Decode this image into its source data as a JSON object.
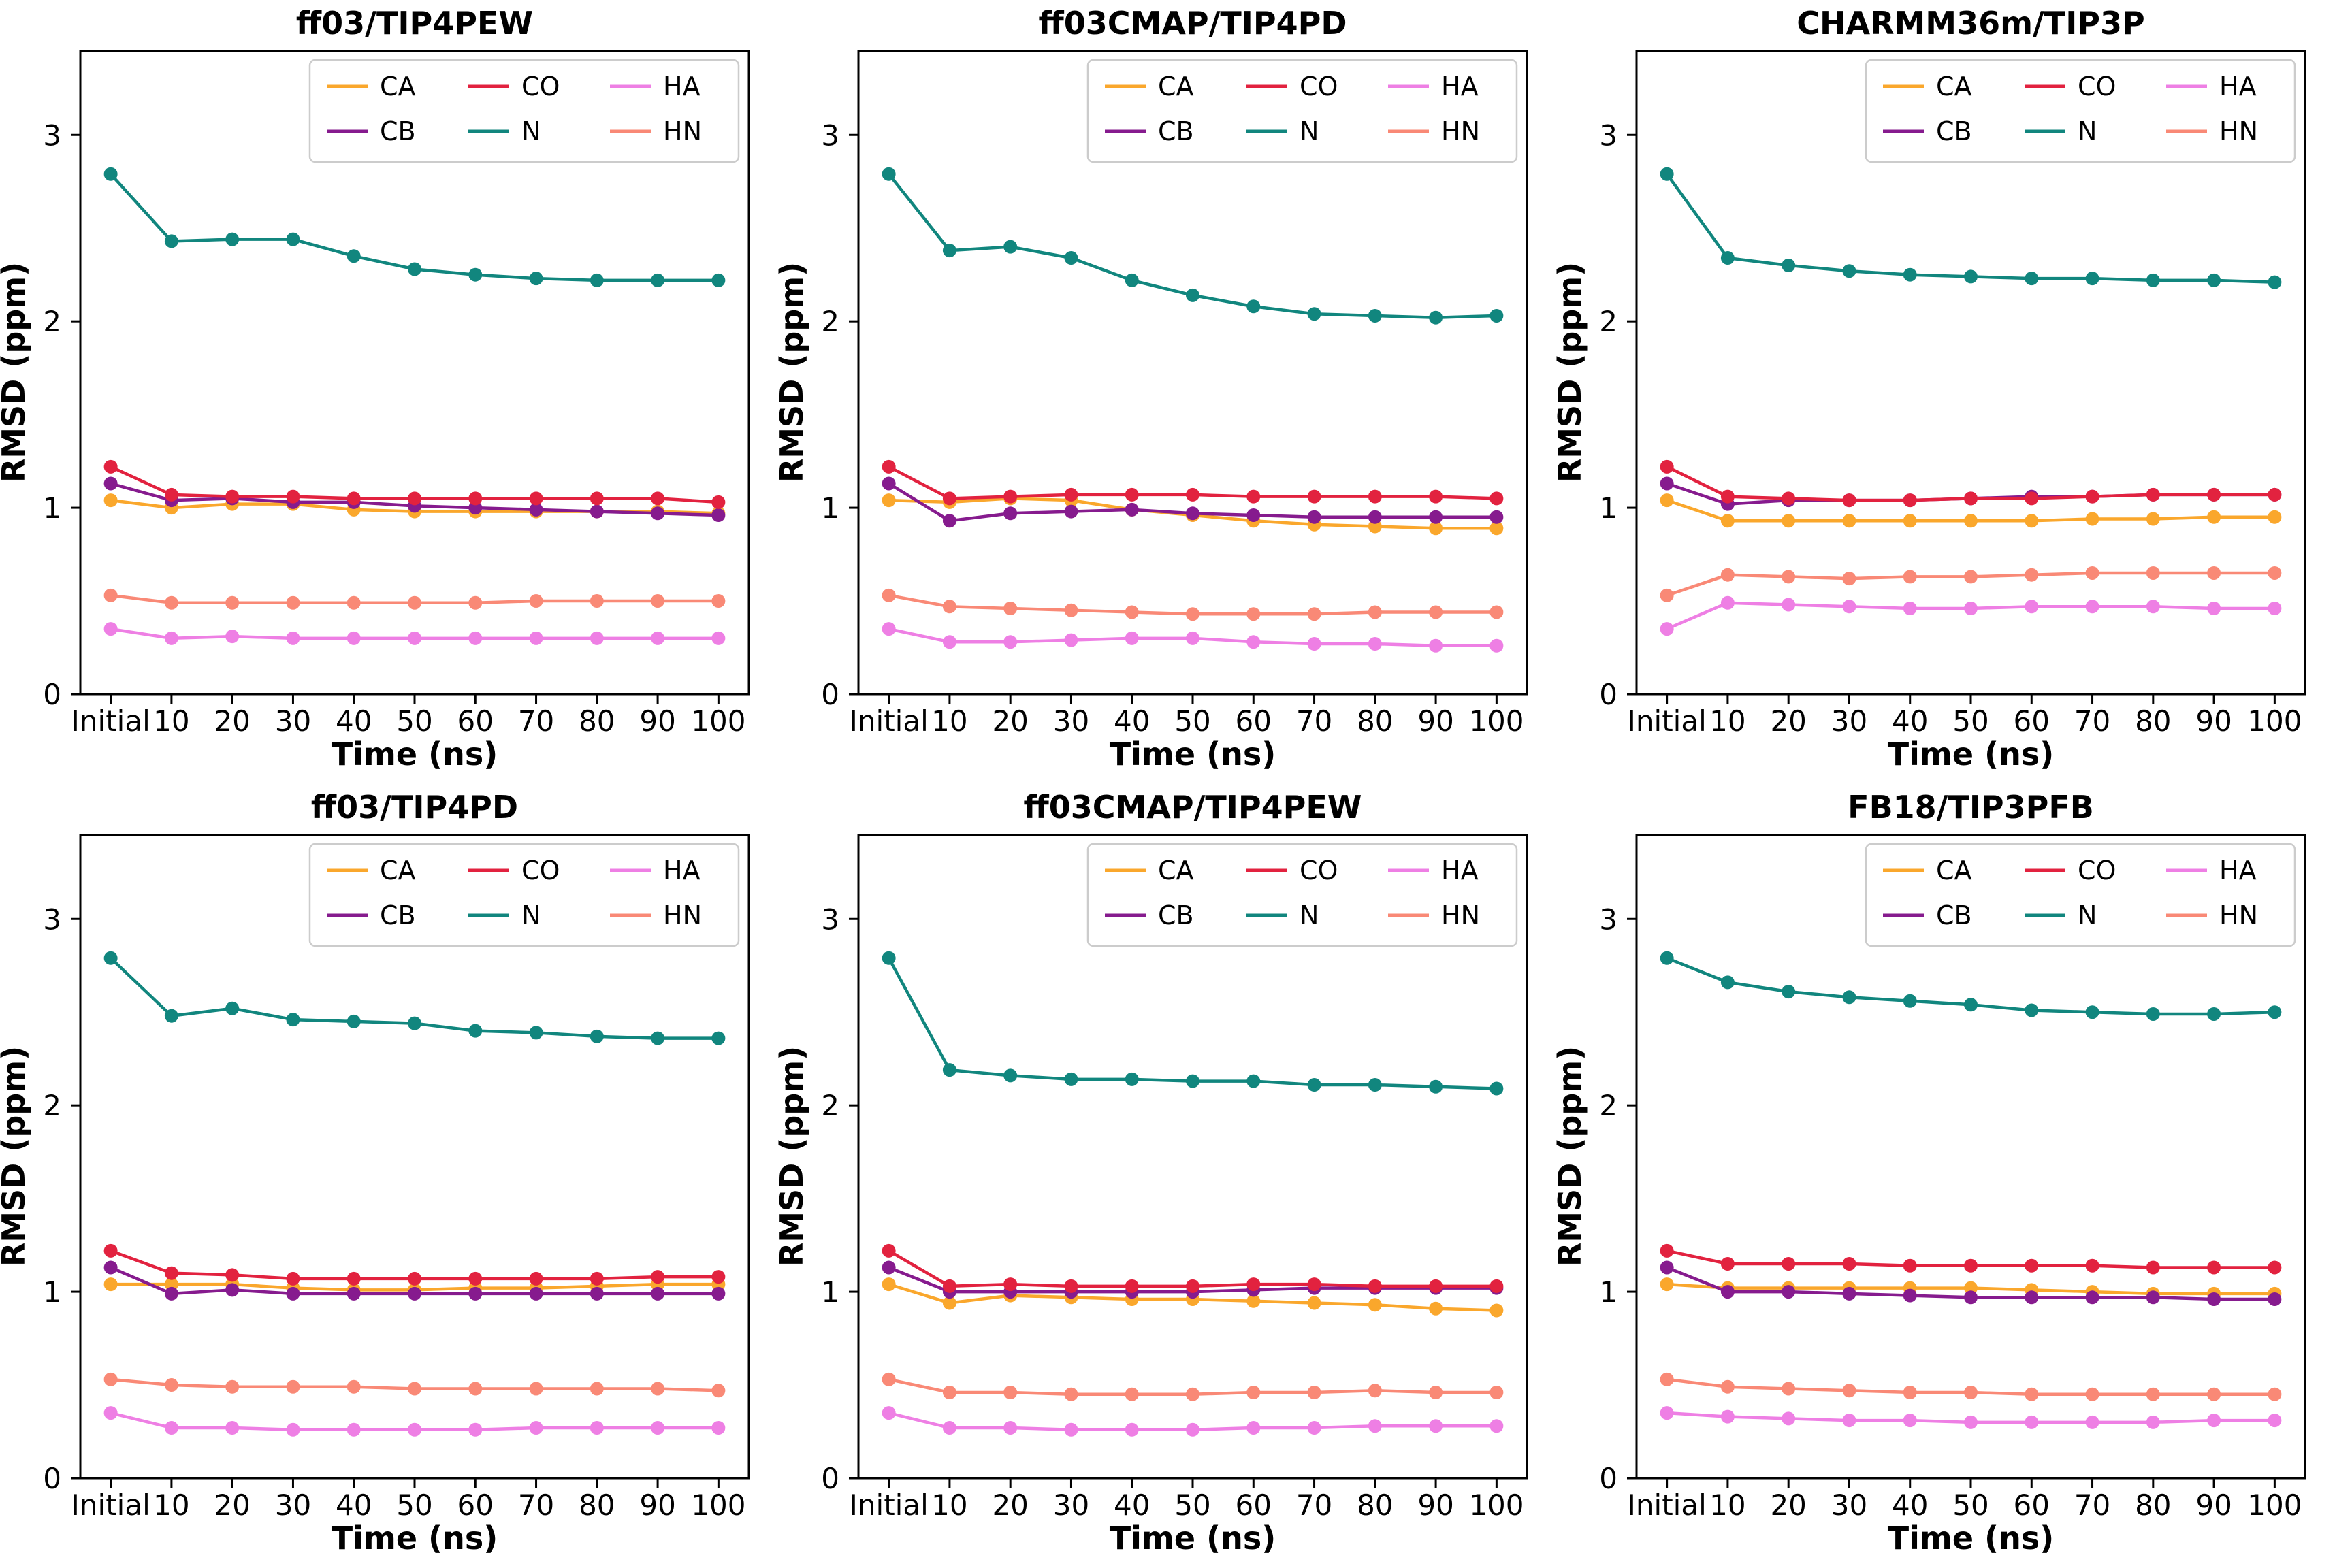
{
  "figure": {
    "background": "#ffffff",
    "layout": "2x3-grid",
    "shared_xlabel": "Time (ns)",
    "shared_ylabel": "RMSD (ppm)"
  },
  "chart_data": [
    {
      "type": "line",
      "title": "ff03/TIP4PEW",
      "xlabel": "Time (ns)",
      "ylabel": "RMSD (ppm)",
      "categories": [
        "Initial",
        "10",
        "20",
        "30",
        "40",
        "50",
        "60",
        "70",
        "80",
        "90",
        "100"
      ],
      "yticks": [
        0,
        1,
        2,
        3
      ],
      "ylim": [
        0,
        3.45
      ],
      "legend_position": "upper-right",
      "series": [
        {
          "name": "CA",
          "color": "#FAA72C",
          "values": [
            1.04,
            1.0,
            1.02,
            1.02,
            0.99,
            0.98,
            0.98,
            0.98,
            0.98,
            0.98,
            0.97
          ]
        },
        {
          "name": "CB",
          "color": "#861B8E",
          "values": [
            1.13,
            1.04,
            1.05,
            1.03,
            1.03,
            1.01,
            1.0,
            0.99,
            0.98,
            0.97,
            0.96
          ]
        },
        {
          "name": "CO",
          "color": "#E2223F",
          "values": [
            1.22,
            1.07,
            1.06,
            1.06,
            1.05,
            1.05,
            1.05,
            1.05,
            1.05,
            1.05,
            1.03
          ]
        },
        {
          "name": "N",
          "color": "#11867E",
          "values": [
            2.79,
            2.43,
            2.44,
            2.44,
            2.35,
            2.28,
            2.25,
            2.23,
            2.22,
            2.22,
            2.22
          ]
        },
        {
          "name": "HA",
          "color": "#EE7FE4",
          "values": [
            0.35,
            0.3,
            0.31,
            0.3,
            0.3,
            0.3,
            0.3,
            0.3,
            0.3,
            0.3,
            0.3
          ]
        },
        {
          "name": "HN",
          "color": "#F98976",
          "values": [
            0.53,
            0.49,
            0.49,
            0.49,
            0.49,
            0.49,
            0.49,
            0.5,
            0.5,
            0.5,
            0.5
          ]
        }
      ]
    },
    {
      "type": "line",
      "title": "ff03CMAP/TIP4PD",
      "xlabel": "Time (ns)",
      "ylabel": "RMSD (ppm)",
      "categories": [
        "Initial",
        "10",
        "20",
        "30",
        "40",
        "50",
        "60",
        "70",
        "80",
        "90",
        "100"
      ],
      "yticks": [
        0,
        1,
        2,
        3
      ],
      "ylim": [
        0,
        3.45
      ],
      "legend_position": "upper-right",
      "series": [
        {
          "name": "CA",
          "color": "#FAA72C",
          "values": [
            1.04,
            1.03,
            1.05,
            1.04,
            0.99,
            0.96,
            0.93,
            0.91,
            0.9,
            0.89,
            0.89
          ]
        },
        {
          "name": "CB",
          "color": "#861B8E",
          "values": [
            1.13,
            0.93,
            0.97,
            0.98,
            0.99,
            0.97,
            0.96,
            0.95,
            0.95,
            0.95,
            0.95
          ]
        },
        {
          "name": "CO",
          "color": "#E2223F",
          "values": [
            1.22,
            1.05,
            1.06,
            1.07,
            1.07,
            1.07,
            1.06,
            1.06,
            1.06,
            1.06,
            1.05
          ]
        },
        {
          "name": "N",
          "color": "#11867E",
          "values": [
            2.79,
            2.38,
            2.4,
            2.34,
            2.22,
            2.14,
            2.08,
            2.04,
            2.03,
            2.02,
            2.03
          ]
        },
        {
          "name": "HA",
          "color": "#EE7FE4",
          "values": [
            0.35,
            0.28,
            0.28,
            0.29,
            0.3,
            0.3,
            0.28,
            0.27,
            0.27,
            0.26,
            0.26
          ]
        },
        {
          "name": "HN",
          "color": "#F98976",
          "values": [
            0.53,
            0.47,
            0.46,
            0.45,
            0.44,
            0.43,
            0.43,
            0.43,
            0.44,
            0.44,
            0.44
          ]
        }
      ]
    },
    {
      "type": "line",
      "title": "CHARMM36m/TIP3P",
      "xlabel": "Time (ns)",
      "ylabel": "RMSD (ppm)",
      "categories": [
        "Initial",
        "10",
        "20",
        "30",
        "40",
        "50",
        "60",
        "70",
        "80",
        "90",
        "100"
      ],
      "yticks": [
        0,
        1,
        2,
        3
      ],
      "ylim": [
        0,
        3.45
      ],
      "legend_position": "upper-right",
      "series": [
        {
          "name": "CA",
          "color": "#FAA72C",
          "values": [
            1.04,
            0.93,
            0.93,
            0.93,
            0.93,
            0.93,
            0.93,
            0.94,
            0.94,
            0.95,
            0.95
          ]
        },
        {
          "name": "CB",
          "color": "#861B8E",
          "values": [
            1.13,
            1.02,
            1.04,
            1.04,
            1.04,
            1.05,
            1.06,
            1.06,
            1.07,
            1.07,
            1.07
          ]
        },
        {
          "name": "CO",
          "color": "#E2223F",
          "values": [
            1.22,
            1.06,
            1.05,
            1.04,
            1.04,
            1.05,
            1.05,
            1.06,
            1.07,
            1.07,
            1.07
          ]
        },
        {
          "name": "N",
          "color": "#11867E",
          "values": [
            2.79,
            2.34,
            2.3,
            2.27,
            2.25,
            2.24,
            2.23,
            2.23,
            2.22,
            2.22,
            2.21
          ]
        },
        {
          "name": "HA",
          "color": "#EE7FE4",
          "values": [
            0.35,
            0.49,
            0.48,
            0.47,
            0.46,
            0.46,
            0.47,
            0.47,
            0.47,
            0.46,
            0.46
          ]
        },
        {
          "name": "HN",
          "color": "#F98976",
          "values": [
            0.53,
            0.64,
            0.63,
            0.62,
            0.63,
            0.63,
            0.64,
            0.65,
            0.65,
            0.65,
            0.65
          ]
        }
      ]
    },
    {
      "type": "line",
      "title": "ff03/TIP4PD",
      "xlabel": "Time (ns)",
      "ylabel": "RMSD (ppm)",
      "categories": [
        "Initial",
        "10",
        "20",
        "30",
        "40",
        "50",
        "60",
        "70",
        "80",
        "90",
        "100"
      ],
      "yticks": [
        0,
        1,
        2,
        3
      ],
      "ylim": [
        0,
        3.45
      ],
      "legend_position": "upper-right",
      "series": [
        {
          "name": "CA",
          "color": "#FAA72C",
          "values": [
            1.04,
            1.04,
            1.04,
            1.02,
            1.01,
            1.01,
            1.02,
            1.02,
            1.03,
            1.04,
            1.04
          ]
        },
        {
          "name": "CB",
          "color": "#861B8E",
          "values": [
            1.13,
            0.99,
            1.01,
            0.99,
            0.99,
            0.99,
            0.99,
            0.99,
            0.99,
            0.99,
            0.99
          ]
        },
        {
          "name": "CO",
          "color": "#E2223F",
          "values": [
            1.22,
            1.1,
            1.09,
            1.07,
            1.07,
            1.07,
            1.07,
            1.07,
            1.07,
            1.08,
            1.08
          ]
        },
        {
          "name": "N",
          "color": "#11867E",
          "values": [
            2.79,
            2.48,
            2.52,
            2.46,
            2.45,
            2.44,
            2.4,
            2.39,
            2.37,
            2.36,
            2.36
          ]
        },
        {
          "name": "HA",
          "color": "#EE7FE4",
          "values": [
            0.35,
            0.27,
            0.27,
            0.26,
            0.26,
            0.26,
            0.26,
            0.27,
            0.27,
            0.27,
            0.27
          ]
        },
        {
          "name": "HN",
          "color": "#F98976",
          "values": [
            0.53,
            0.5,
            0.49,
            0.49,
            0.49,
            0.48,
            0.48,
            0.48,
            0.48,
            0.48,
            0.47
          ]
        }
      ]
    },
    {
      "type": "line",
      "title": "ff03CMAP/TIP4PEW",
      "xlabel": "Time (ns)",
      "ylabel": "RMSD (ppm)",
      "categories": [
        "Initial",
        "10",
        "20",
        "30",
        "40",
        "50",
        "60",
        "70",
        "80",
        "90",
        "100"
      ],
      "yticks": [
        0,
        1,
        2,
        3
      ],
      "ylim": [
        0,
        3.45
      ],
      "legend_position": "upper-right",
      "series": [
        {
          "name": "CA",
          "color": "#FAA72C",
          "values": [
            1.04,
            0.94,
            0.98,
            0.97,
            0.96,
            0.96,
            0.95,
            0.94,
            0.93,
            0.91,
            0.9
          ]
        },
        {
          "name": "CB",
          "color": "#861B8E",
          "values": [
            1.13,
            1.0,
            1.0,
            1.0,
            1.0,
            1.0,
            1.01,
            1.02,
            1.02,
            1.02,
            1.02
          ]
        },
        {
          "name": "CO",
          "color": "#E2223F",
          "values": [
            1.22,
            1.03,
            1.04,
            1.03,
            1.03,
            1.03,
            1.04,
            1.04,
            1.03,
            1.03,
            1.03
          ]
        },
        {
          "name": "N",
          "color": "#11867E",
          "values": [
            2.79,
            2.19,
            2.16,
            2.14,
            2.14,
            2.13,
            2.13,
            2.11,
            2.11,
            2.1,
            2.09
          ]
        },
        {
          "name": "HA",
          "color": "#EE7FE4",
          "values": [
            0.35,
            0.27,
            0.27,
            0.26,
            0.26,
            0.26,
            0.27,
            0.27,
            0.28,
            0.28,
            0.28
          ]
        },
        {
          "name": "HN",
          "color": "#F98976",
          "values": [
            0.53,
            0.46,
            0.46,
            0.45,
            0.45,
            0.45,
            0.46,
            0.46,
            0.47,
            0.46,
            0.46
          ]
        }
      ]
    },
    {
      "type": "line",
      "title": "FB18/TIP3PFB",
      "xlabel": "Time (ns)",
      "ylabel": "RMSD (ppm)",
      "categories": [
        "Initial",
        "10",
        "20",
        "30",
        "40",
        "50",
        "60",
        "70",
        "80",
        "90",
        "100"
      ],
      "yticks": [
        0,
        1,
        2,
        3
      ],
      "ylim": [
        0,
        3.45
      ],
      "legend_position": "upper-right",
      "series": [
        {
          "name": "CA",
          "color": "#FAA72C",
          "values": [
            1.04,
            1.02,
            1.02,
            1.02,
            1.02,
            1.02,
            1.01,
            1.0,
            0.99,
            0.99,
            0.99
          ]
        },
        {
          "name": "CB",
          "color": "#861B8E",
          "values": [
            1.13,
            1.0,
            1.0,
            0.99,
            0.98,
            0.97,
            0.97,
            0.97,
            0.97,
            0.96,
            0.96
          ]
        },
        {
          "name": "CO",
          "color": "#E2223F",
          "values": [
            1.22,
            1.15,
            1.15,
            1.15,
            1.14,
            1.14,
            1.14,
            1.14,
            1.13,
            1.13,
            1.13
          ]
        },
        {
          "name": "N",
          "color": "#11867E",
          "values": [
            2.79,
            2.66,
            2.61,
            2.58,
            2.56,
            2.54,
            2.51,
            2.5,
            2.49,
            2.49,
            2.5
          ]
        },
        {
          "name": "HA",
          "color": "#EE7FE4",
          "values": [
            0.35,
            0.33,
            0.32,
            0.31,
            0.31,
            0.3,
            0.3,
            0.3,
            0.3,
            0.31,
            0.31
          ]
        },
        {
          "name": "HN",
          "color": "#F98976",
          "values": [
            0.53,
            0.49,
            0.48,
            0.47,
            0.46,
            0.46,
            0.45,
            0.45,
            0.45,
            0.45,
            0.45
          ]
        }
      ]
    }
  ]
}
